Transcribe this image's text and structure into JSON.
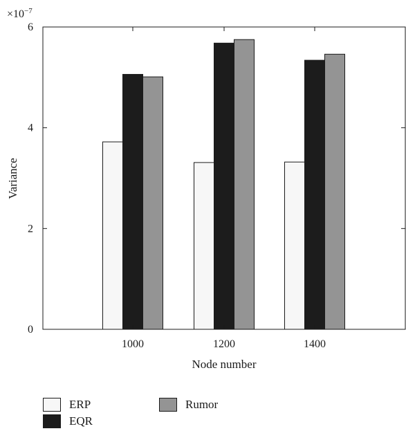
{
  "chart_data": {
    "type": "bar",
    "categories": [
      "1000",
      "1200",
      "1400"
    ],
    "series": [
      {
        "name": "ERP",
        "values": [
          3.72,
          3.31,
          3.32
        ],
        "color": "#f7f7f7"
      },
      {
        "name": "EQR",
        "values": [
          5.06,
          5.68,
          5.34
        ],
        "color": "#1c1c1c"
      },
      {
        "name": "Rumor",
        "values": [
          5.01,
          5.75,
          5.46
        ],
        "color": "#949494"
      }
    ],
    "xlabel": "Node number",
    "ylabel": "Variance",
    "ylim": [
      0,
      6
    ],
    "yticks": [
      "0",
      "2",
      "4",
      "6"
    ],
    "yscale_label_base": "×10",
    "yscale_label_exp": "−7",
    "grid": false,
    "legend_position": "bottom-left"
  }
}
